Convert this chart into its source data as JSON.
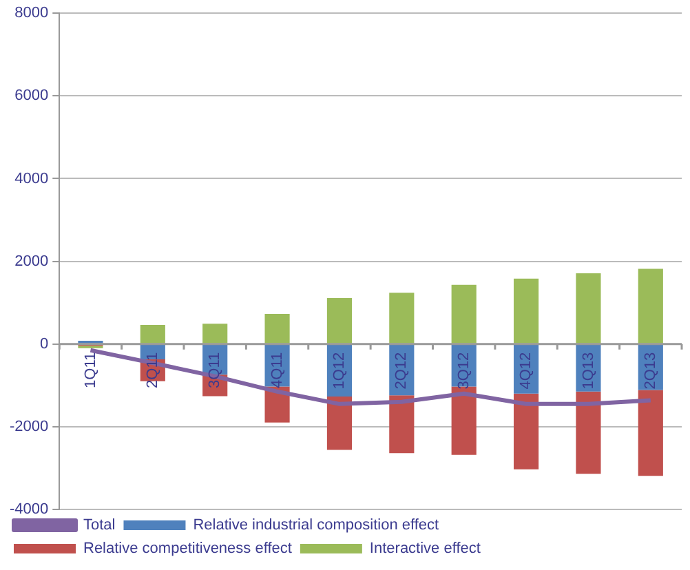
{
  "chart_data": {
    "type": "bar",
    "stacked": true,
    "categories": [
      "1Q11",
      "2Q11",
      "3Q11",
      "4Q11",
      "1Q12",
      "2Q12",
      "3Q12",
      "4Q12",
      "1Q13",
      "2Q13"
    ],
    "series": [
      {
        "name": "Relative industrial composition effect",
        "color": "#4f81bd",
        "values": [
          80,
          -370,
          -740,
          -1030,
          -1270,
          -1240,
          -1030,
          -1200,
          -1150,
          -1110
        ]
      },
      {
        "name": "Relative competitiveness effect",
        "color": "#c0504d",
        "values": [
          -40,
          -530,
          -520,
          -870,
          -1290,
          -1400,
          -1650,
          -1830,
          -1990,
          -2080
        ]
      },
      {
        "name": "Interactive effect",
        "color": "#9bbb59",
        "values": [
          -60,
          460,
          490,
          730,
          1110,
          1240,
          1430,
          1580,
          1710,
          1820
        ]
      },
      {
        "name": "Total",
        "type": "line",
        "color": "#8064a2",
        "values": [
          -150,
          -460,
          -780,
          -1150,
          -1450,
          -1400,
          -1200,
          -1450,
          -1450,
          -1360
        ]
      }
    ],
    "ylim": [
      -4000,
      8000
    ],
    "yticks": [
      -4000,
      -2000,
      0,
      2000,
      4000,
      6000,
      8000
    ],
    "grid": "y",
    "legend": "bottom",
    "marker": "none"
  }
}
